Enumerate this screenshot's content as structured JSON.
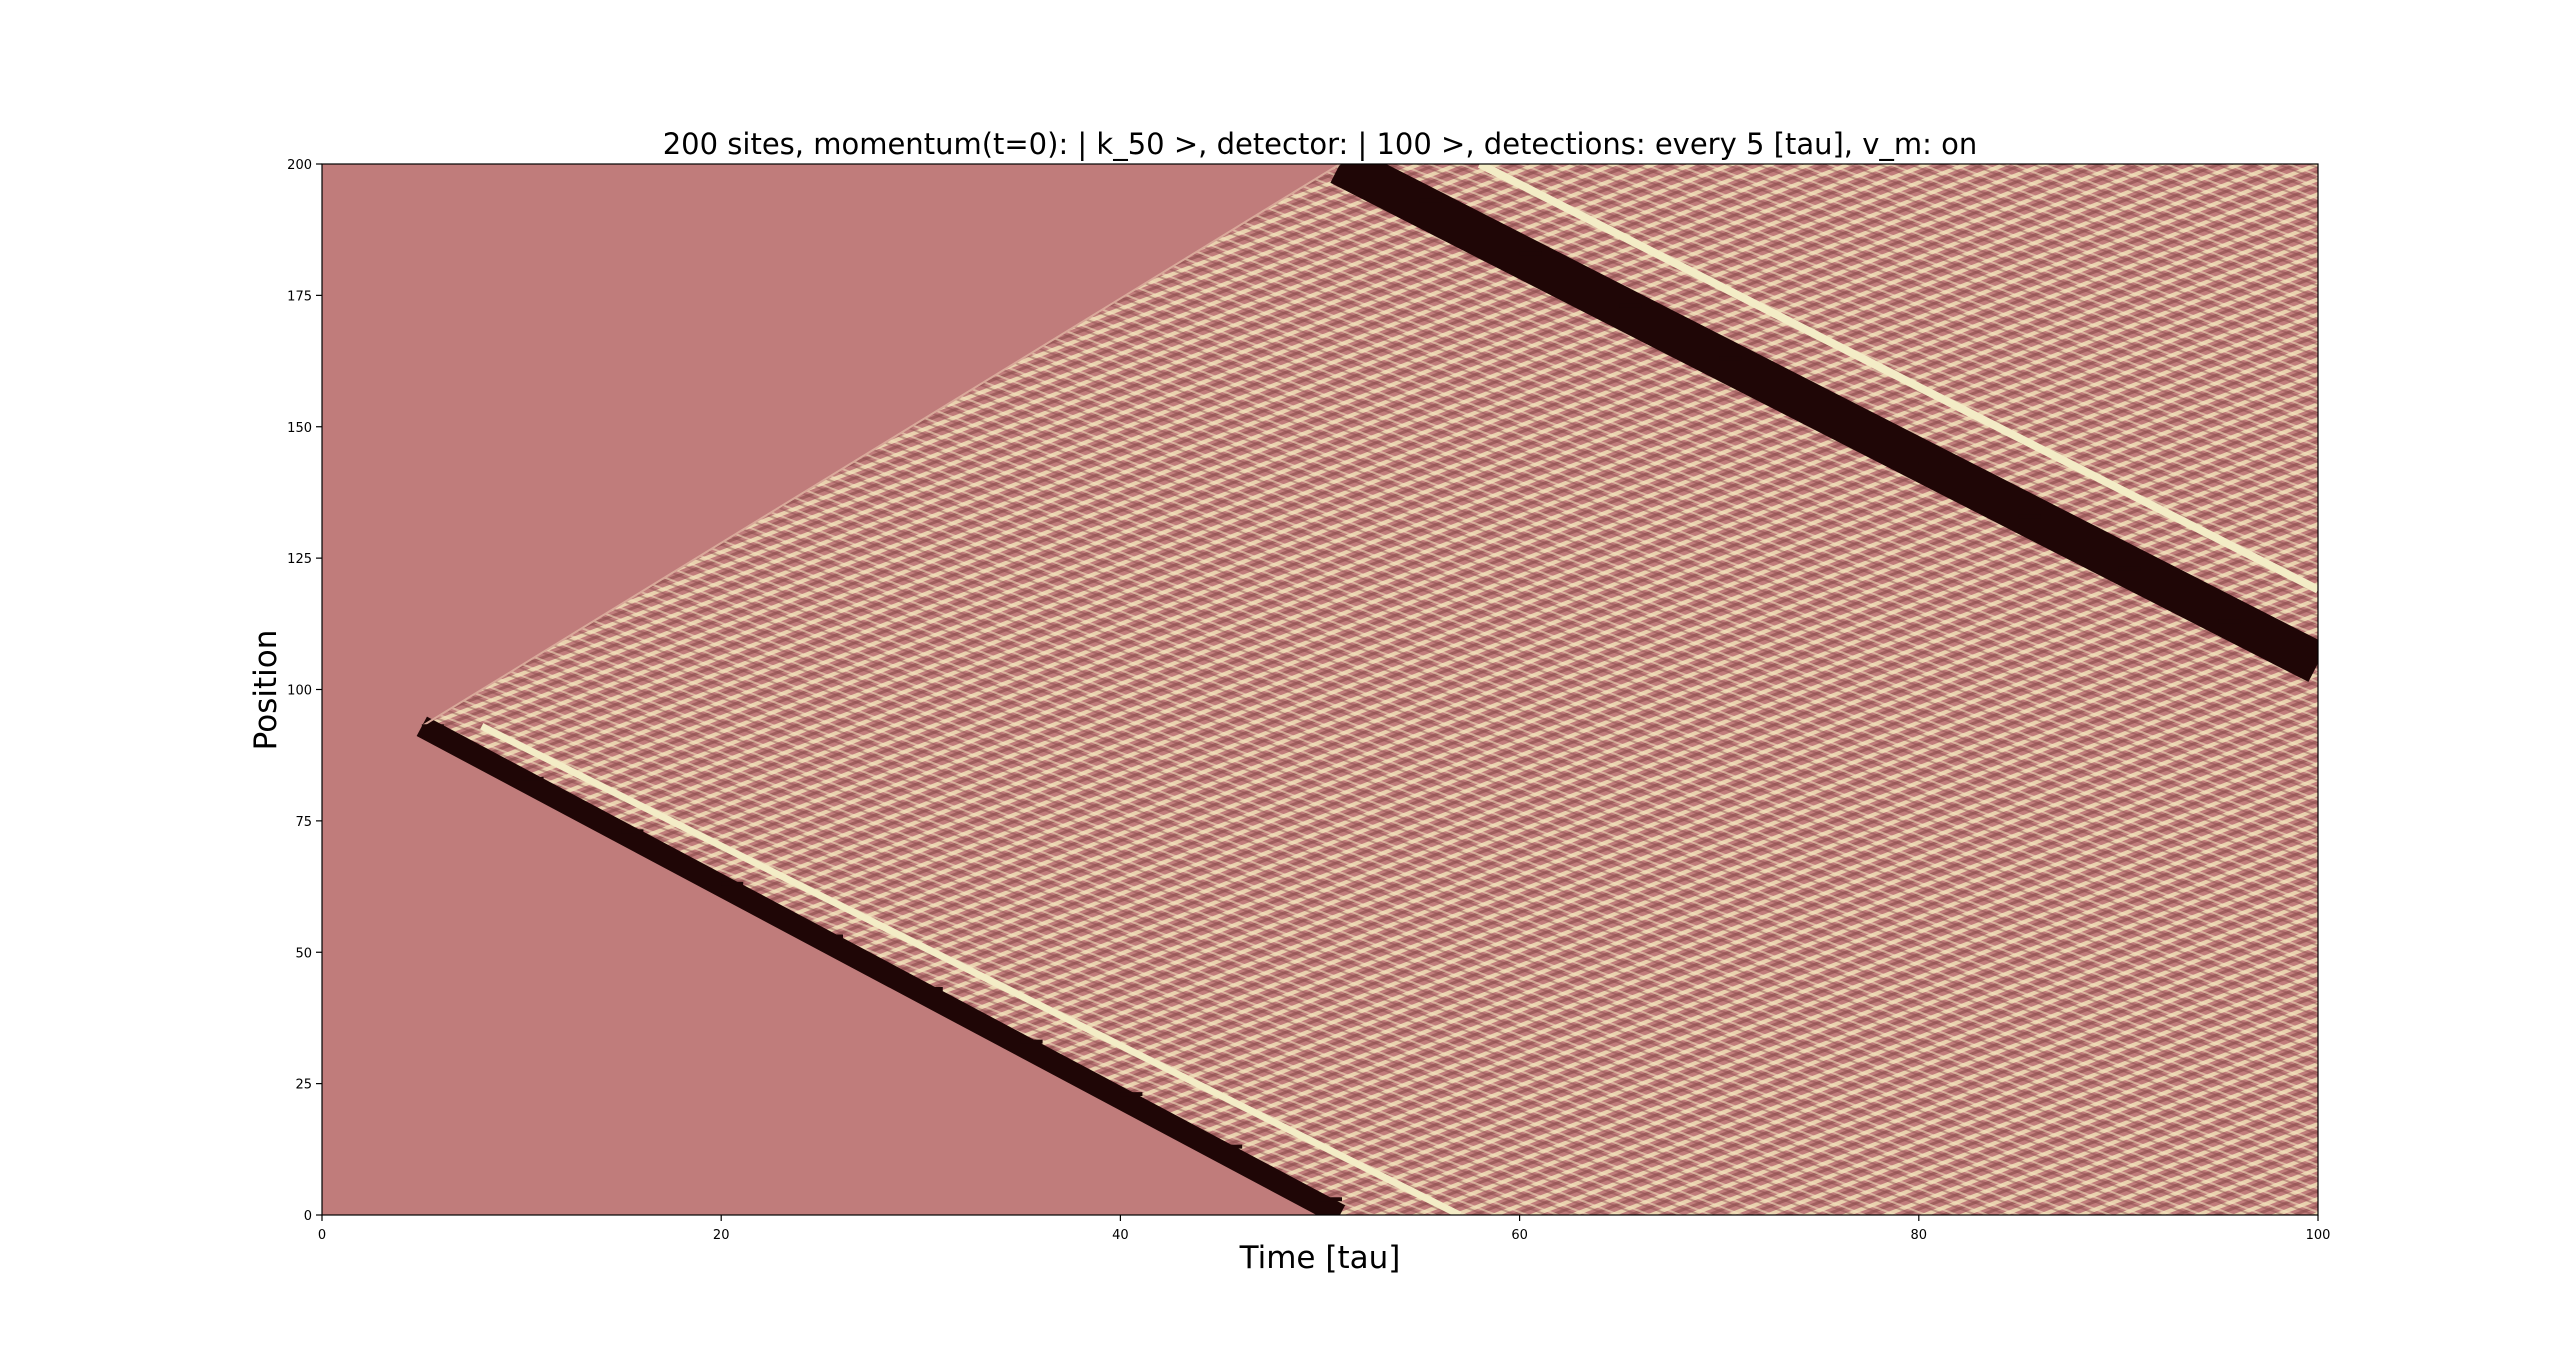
{
  "chart_data": {
    "type": "heatmap",
    "title": "200 sites, momentum(t=0): | k_50 >, detector: | 100 >, detections: every 5 [tau], v_m: on",
    "xlabel": "Time [tau]",
    "ylabel": "Position",
    "xlim": [
      0,
      100
    ],
    "ylim": [
      0,
      200
    ],
    "xticks": [
      0,
      20,
      40,
      60,
      80,
      100
    ],
    "yticks": [
      0,
      25,
      50,
      75,
      100,
      125,
      150,
      175,
      200
    ],
    "grid": false,
    "legend": "none",
    "colormap": "pink",
    "colors": {
      "background": "#c07c7b",
      "dark": "#1f0606",
      "light": "#f3ecc6",
      "mid_dark": "#9a5a59",
      "mid_light": "#d9a99a"
    },
    "detection_interval": 5,
    "detection_marks": [
      {
        "t": 5,
        "position": 93
      },
      {
        "t": 10,
        "position": 83
      },
      {
        "t": 15,
        "position": 73
      },
      {
        "t": 20,
        "position": 63
      },
      {
        "t": 25,
        "position": 53
      },
      {
        "t": 30,
        "position": 43
      },
      {
        "t": 35,
        "position": 33
      },
      {
        "t": 40,
        "position": 23
      },
      {
        "t": 45,
        "position": 13
      },
      {
        "t": 50,
        "position": 3
      },
      {
        "t": 55,
        "position": 193
      },
      {
        "t": 60,
        "position": 183
      },
      {
        "t": 65,
        "position": 173
      },
      {
        "t": 70,
        "position": 163
      },
      {
        "t": 75,
        "position": 153
      },
      {
        "t": 80,
        "position": 143
      },
      {
        "t": 85,
        "position": 133
      },
      {
        "t": 90,
        "position": 123
      },
      {
        "t": 95,
        "position": 113
      },
      {
        "t": 100,
        "position": 103
      }
    ],
    "wavefronts": {
      "start": {
        "t": 5,
        "position": 93
      },
      "lower_front_end": {
        "t": 51,
        "position": 0
      },
      "upper_front_end": {
        "t": 51,
        "position": 200
      },
      "wrapped_front_start": {
        "t": 51,
        "position": 200
      },
      "wrapped_front_end": {
        "t": 100,
        "position": 105
      }
    }
  }
}
